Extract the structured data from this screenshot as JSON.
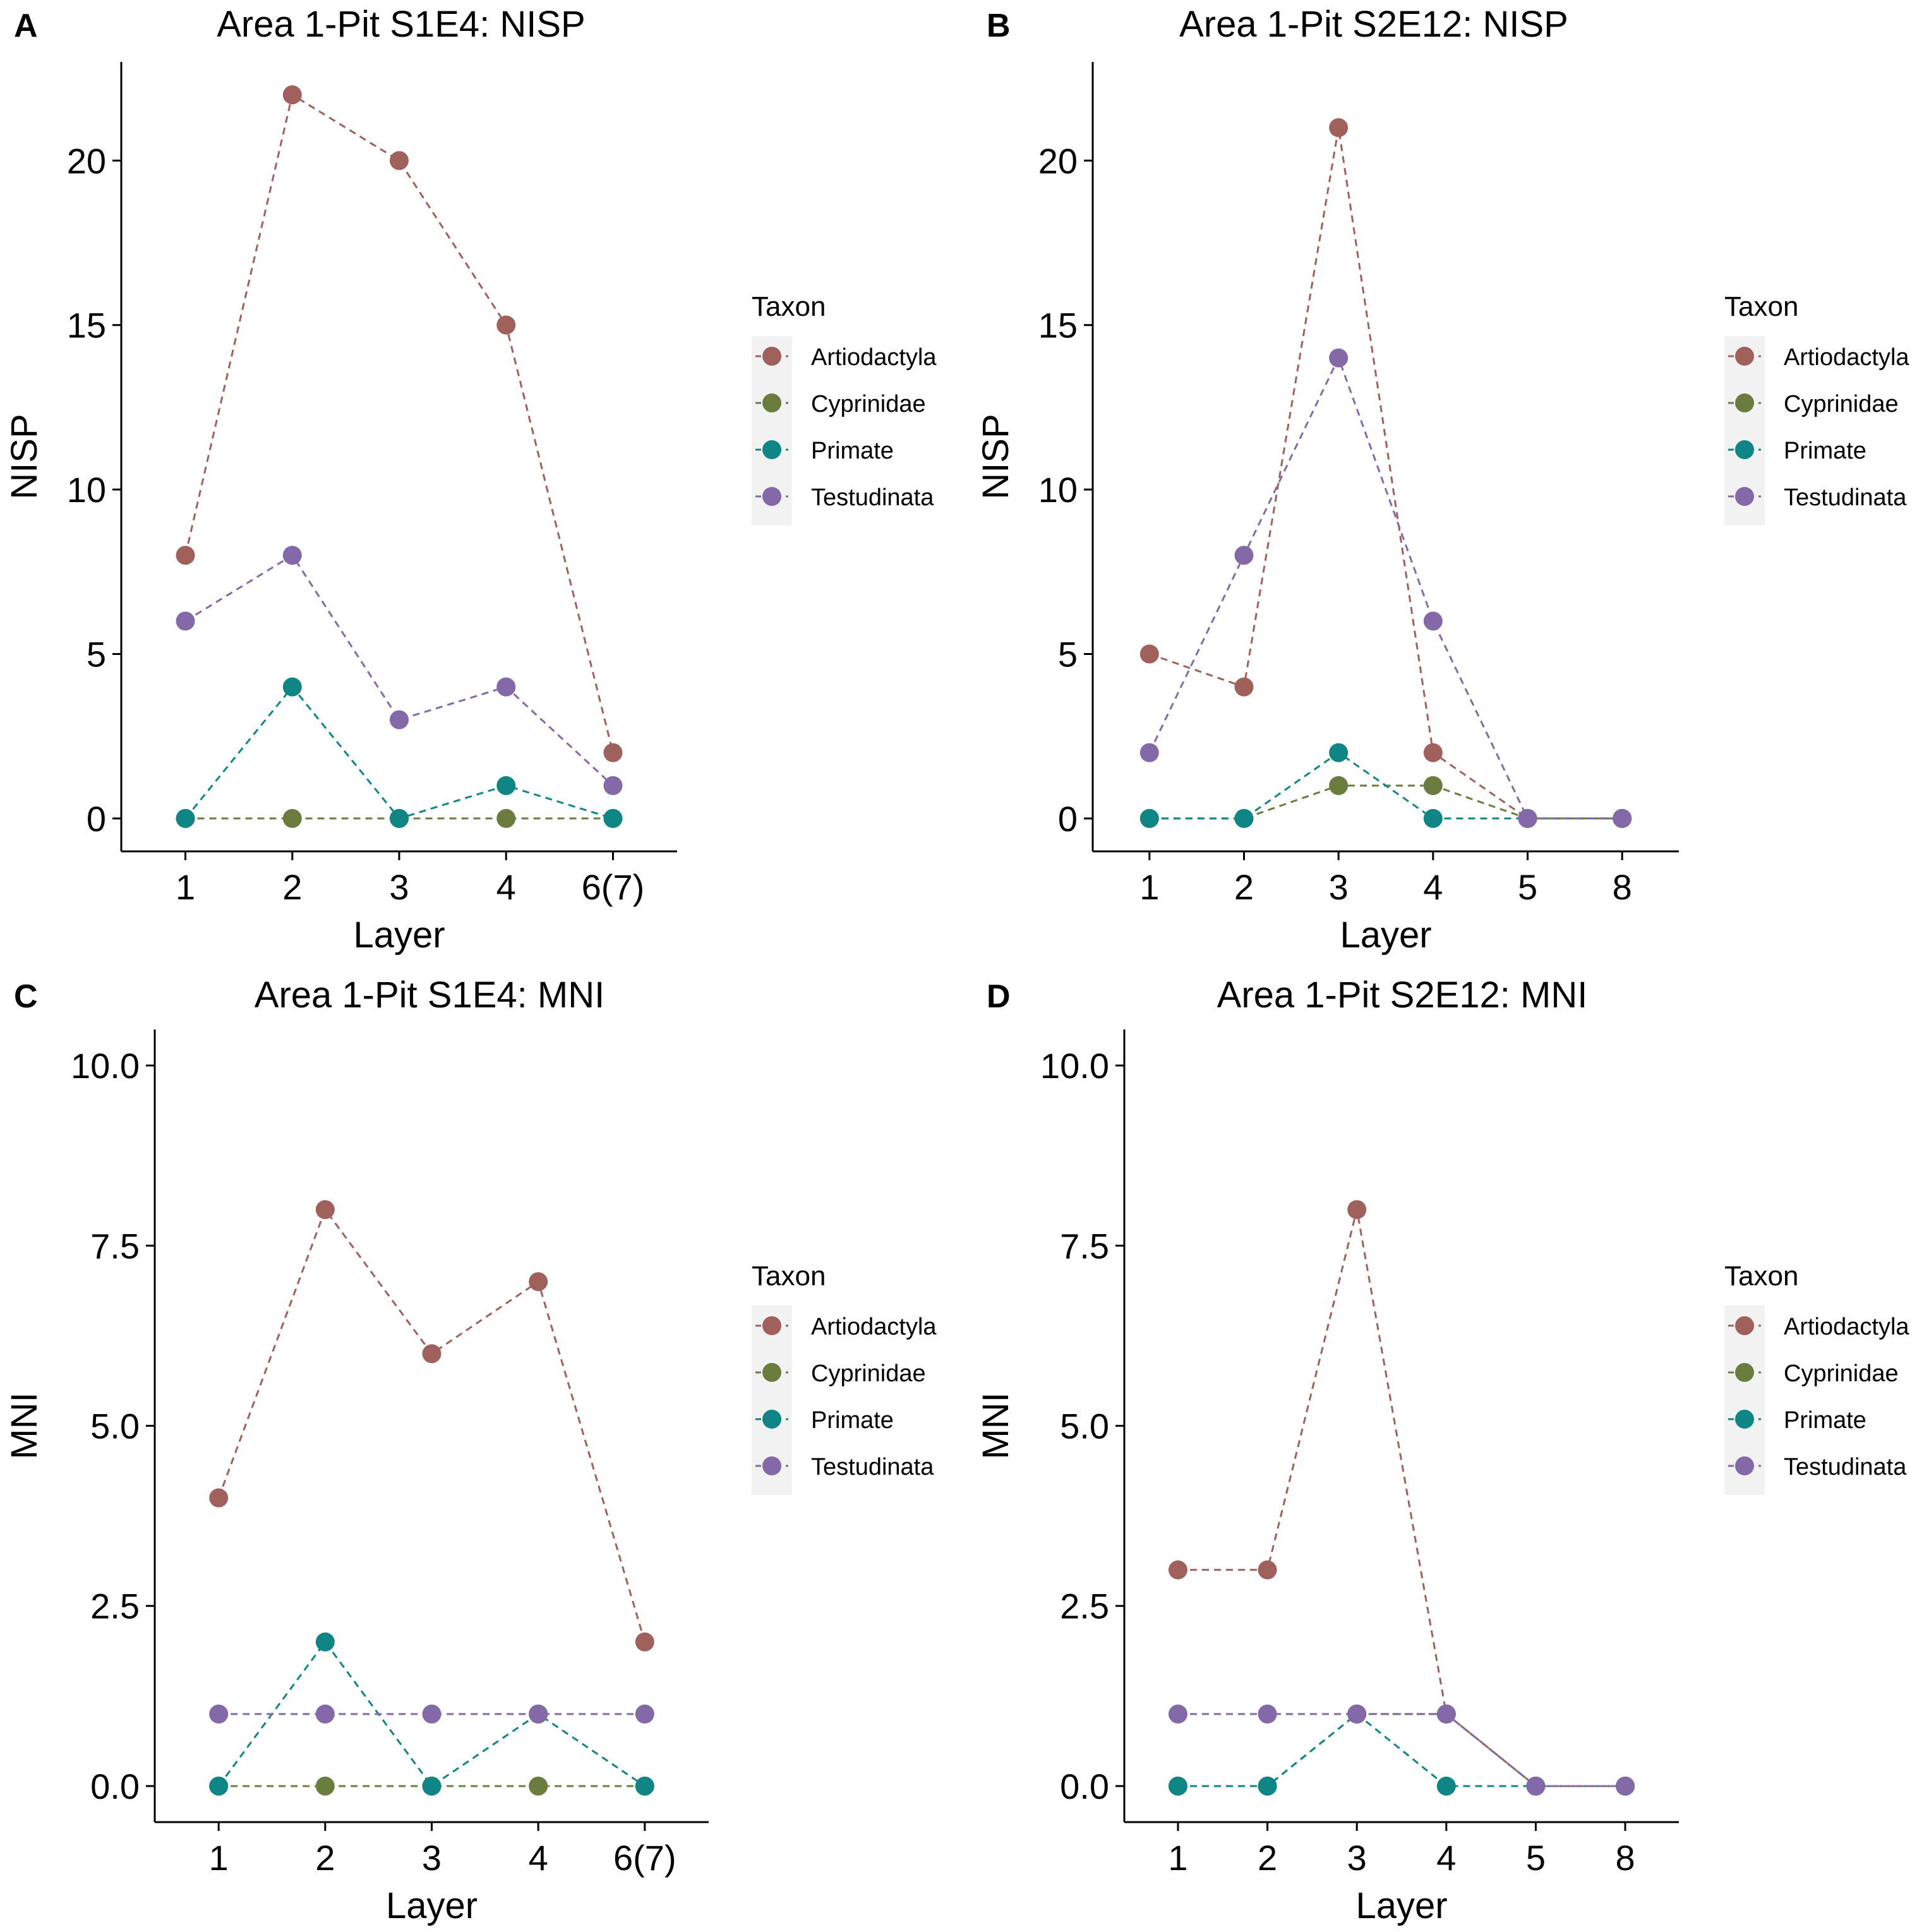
{
  "legend_title": "Taxon",
  "colors": {
    "Artiodactyla": "#a0605c",
    "Cyprinidae": "#6b7d3e",
    "Primate": "#0f8585",
    "Testudinata": "#8469a8"
  },
  "chart_data": [
    {
      "panel": "A",
      "type": "line",
      "title": "Area 1-Pit S1E4: NISP",
      "xlabel": "Layer",
      "ylabel": "NISP",
      "categories": [
        "1",
        "2",
        "3",
        "4",
        "6(7)"
      ],
      "ylim": [
        -1,
        23
      ],
      "yticks": [
        0,
        5,
        10,
        15,
        20
      ],
      "ytick_labels": [
        "0",
        "5",
        "10",
        "15",
        "20"
      ],
      "series": [
        {
          "name": "Artiodactyla",
          "values": [
            8,
            22,
            20,
            15,
            2
          ]
        },
        {
          "name": "Cyprinidae",
          "values": [
            0,
            0,
            0,
            0,
            0
          ]
        },
        {
          "name": "Primate",
          "values": [
            0,
            4,
            0,
            1,
            0
          ]
        },
        {
          "name": "Testudinata",
          "values": [
            6,
            8,
            3,
            4,
            1
          ]
        }
      ]
    },
    {
      "panel": "B",
      "type": "line",
      "title": "Area 1-Pit S2E12: NISP",
      "xlabel": "Layer",
      "ylabel": "NISP",
      "categories": [
        "1",
        "2",
        "3",
        "4",
        "5",
        "8"
      ],
      "ylim": [
        -1,
        23
      ],
      "yticks": [
        0,
        5,
        10,
        15,
        20
      ],
      "ytick_labels": [
        "0",
        "5",
        "10",
        "15",
        "20"
      ],
      "series": [
        {
          "name": "Artiodactyla",
          "values": [
            5,
            4,
            21,
            2,
            0,
            0
          ]
        },
        {
          "name": "Cyprinidae",
          "values": [
            0,
            0,
            1,
            1,
            0,
            0
          ]
        },
        {
          "name": "Primate",
          "values": [
            0,
            0,
            2,
            0,
            0,
            0
          ]
        },
        {
          "name": "Testudinata",
          "values": [
            2,
            8,
            14,
            6,
            0,
            0
          ]
        }
      ]
    },
    {
      "panel": "C",
      "type": "line",
      "title": "Area 1-Pit S1E4: MNI",
      "xlabel": "Layer",
      "ylabel": "MNI",
      "categories": [
        "1",
        "2",
        "3",
        "4",
        "6(7)"
      ],
      "ylim": [
        -0.5,
        10.5
      ],
      "yticks": [
        0,
        2.5,
        5,
        7.5,
        10
      ],
      "ytick_labels": [
        "0.0",
        "2.5",
        "5.0",
        "7.5",
        "10.0"
      ],
      "series": [
        {
          "name": "Artiodactyla",
          "values": [
            4,
            8,
            6,
            7,
            2
          ]
        },
        {
          "name": "Cyprinidae",
          "values": [
            0,
            0,
            0,
            0,
            0
          ]
        },
        {
          "name": "Primate",
          "values": [
            0,
            2,
            0,
            1,
            0
          ]
        },
        {
          "name": "Testudinata",
          "values": [
            1,
            1,
            1,
            1,
            1
          ]
        }
      ]
    },
    {
      "panel": "D",
      "type": "line",
      "title": "Area 1-Pit S2E12: MNI",
      "xlabel": "Layer",
      "ylabel": "MNI",
      "categories": [
        "1",
        "2",
        "3",
        "4",
        "5",
        "8"
      ],
      "ylim": [
        -0.5,
        10.5
      ],
      "yticks": [
        0,
        2.5,
        5,
        7.5,
        10
      ],
      "ytick_labels": [
        "0.0",
        "2.5",
        "5.0",
        "7.5",
        "10.0"
      ],
      "series": [
        {
          "name": "Artiodactyla",
          "values": [
            3,
            3,
            8,
            1,
            0,
            0
          ]
        },
        {
          "name": "Cyprinidae",
          "values": [
            0,
            0,
            1,
            1,
            0,
            0
          ]
        },
        {
          "name": "Primate",
          "values": [
            0,
            0,
            1,
            0,
            0,
            0
          ]
        },
        {
          "name": "Testudinata",
          "values": [
            1,
            1,
            1,
            1,
            0,
            0
          ]
        }
      ]
    }
  ]
}
